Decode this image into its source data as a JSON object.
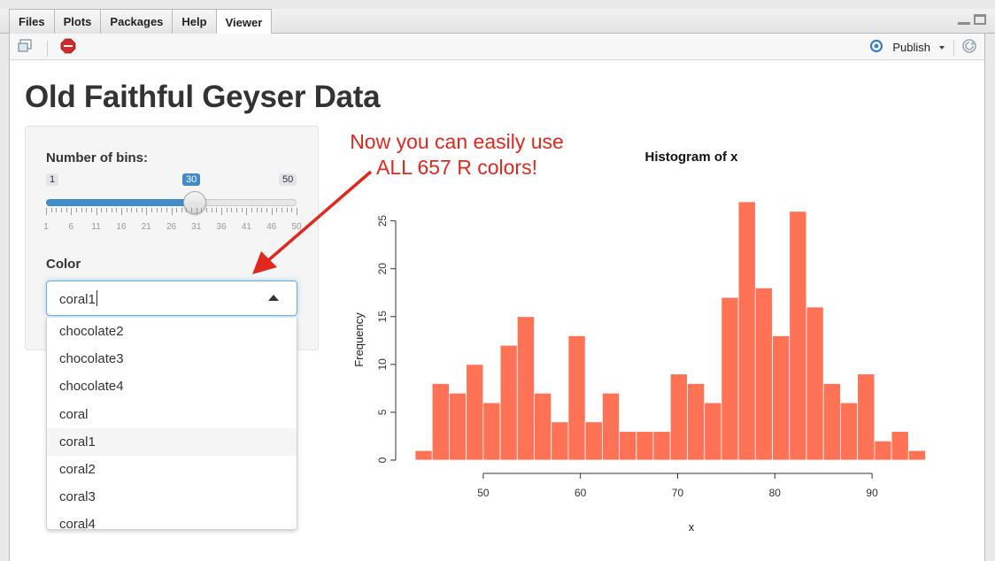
{
  "tabs": [
    {
      "label": "Files"
    },
    {
      "label": "Plots"
    },
    {
      "label": "Packages"
    },
    {
      "label": "Help"
    },
    {
      "label": "Viewer"
    }
  ],
  "toolbar": {
    "publish_label": "Publish"
  },
  "app": {
    "title": "Old Faithful Geyser Data",
    "bins": {
      "label": "Number of bins:",
      "min": "1",
      "max": "50",
      "value": "30",
      "fraction": 0.592,
      "tick_labels": [
        "1",
        "6",
        "11",
        "16",
        "21",
        "26",
        "31",
        "36",
        "41",
        "46",
        "50"
      ]
    },
    "color": {
      "label": "Color",
      "value": "coral1",
      "options": [
        "chocolate2",
        "chocolate3",
        "chocolate4",
        "coral",
        "coral1",
        "coral2",
        "coral3",
        "coral4"
      ],
      "highlighted": "coral1"
    }
  },
  "annotation": {
    "line1": "Now you can easily use",
    "line2": "ALL 657 R colors!",
    "color": "#e0281e"
  },
  "chart_data": {
    "type": "bar",
    "title": "Histogram of x",
    "xlabel": "x",
    "ylabel": "Frequency",
    "bar_color": "#ff7256",
    "bin_width": 1.75,
    "x_start": 43,
    "values": [
      1,
      8,
      7,
      10,
      6,
      12,
      15,
      7,
      4,
      13,
      4,
      7,
      3,
      3,
      3,
      9,
      8,
      6,
      17,
      27,
      18,
      13,
      26,
      16,
      8,
      6,
      9,
      2,
      3,
      1
    ],
    "xlim": [
      43,
      96
    ],
    "ylim": [
      0,
      27
    ],
    "x_ticks": [
      50,
      60,
      70,
      80,
      90
    ],
    "y_ticks": [
      0,
      5,
      10,
      15,
      20,
      25
    ]
  }
}
